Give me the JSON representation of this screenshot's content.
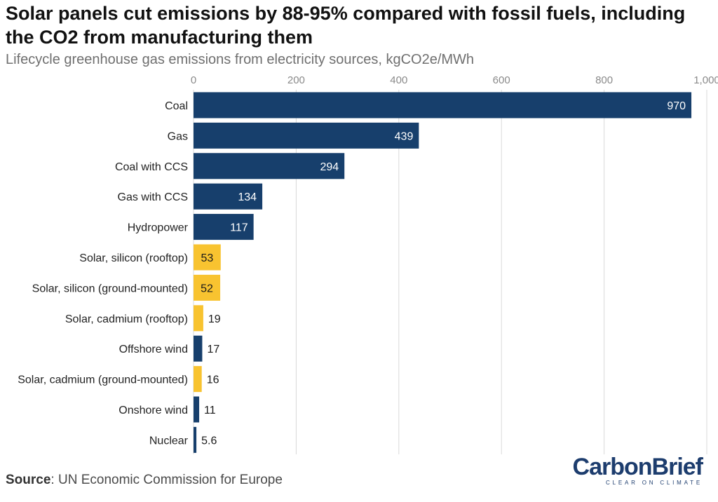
{
  "header": {
    "title": "Solar panels cut emissions by 88-95% compared with fossil fuels, including the CO2 from manufacturing them",
    "subtitle": "Lifecycle greenhouse gas emissions from electricity sources, kgCO2e/MWh"
  },
  "footer": {
    "source_label": "Source",
    "source_text": ": UN Economic Commission for Europe",
    "logo_text": "CarbonBrief",
    "logo_tagline": "CLEAR ON CLIMATE"
  },
  "colors": {
    "fossil_other": "#173f6c",
    "solar": "#f8c330",
    "grid": "#d9d9d9",
    "label_text": "#222222",
    "tick_text": "#8a8a8a"
  },
  "chart_data": {
    "type": "bar",
    "orientation": "horizontal",
    "title": "Solar panels cut emissions by 88-95% compared with fossil fuels, including the CO2 from manufacturing them",
    "subtitle": "Lifecycle greenhouse gas emissions from electricity sources, kgCO2e/MWh",
    "xlabel": "",
    "ylabel": "",
    "xlim": [
      0,
      1000
    ],
    "x_ticks": [
      0,
      200,
      400,
      600,
      800,
      1000
    ],
    "x_tick_labels": [
      "0",
      "200",
      "400",
      "600",
      "800",
      "1,000"
    ],
    "grid": true,
    "categories": [
      "Coal",
      "Gas",
      "Coal with CCS",
      "Gas with CCS",
      "Hydropower",
      "Solar, silicon (rooftop)",
      "Solar, silicon (ground-mounted)",
      "Solar, cadmium (rooftop)",
      "Offshore wind",
      "Solar, cadmium (ground-mounted)",
      "Onshore wind",
      "Nuclear"
    ],
    "values": [
      970,
      439,
      294,
      134,
      117,
      53,
      52,
      19,
      17,
      16,
      11,
      5.6
    ],
    "value_labels": [
      "970",
      "439",
      "294",
      "134",
      "117",
      "53",
      "52",
      "19",
      "17",
      "16",
      "11",
      "5.6"
    ],
    "bar_colors": [
      "#173f6c",
      "#173f6c",
      "#173f6c",
      "#173f6c",
      "#173f6c",
      "#f8c330",
      "#f8c330",
      "#f8c330",
      "#173f6c",
      "#f8c330",
      "#173f6c",
      "#173f6c"
    ]
  }
}
